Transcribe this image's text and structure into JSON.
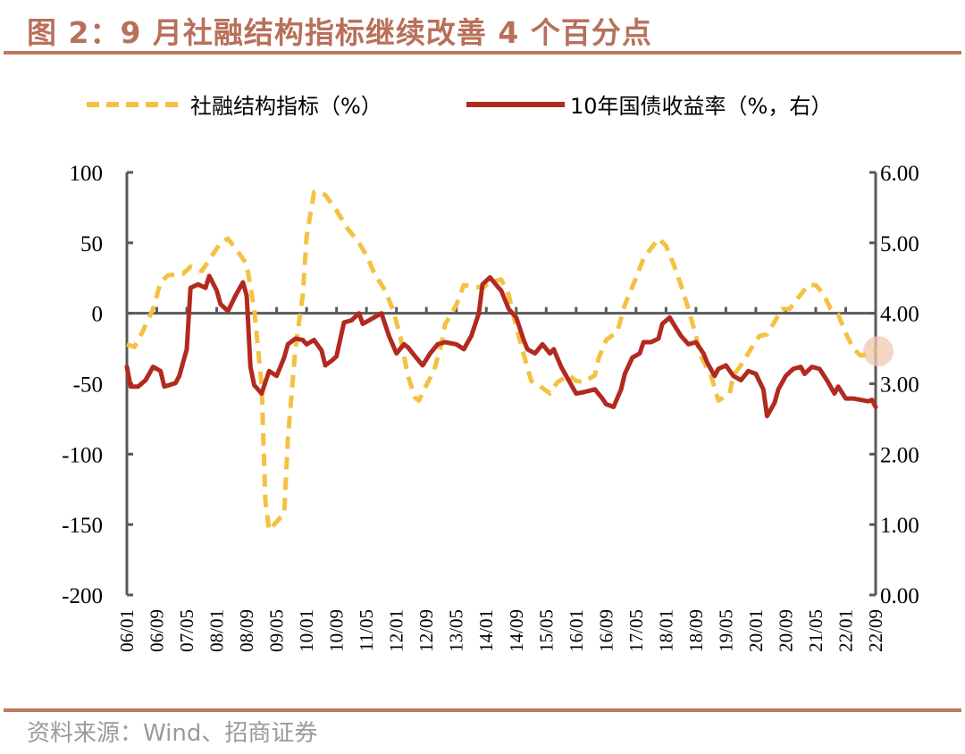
{
  "title": "图 2：9 月社融结构指标继续改善 4 个百分点",
  "source": "资料来源：Wind、招商证券",
  "colors": {
    "title": "#b8705a",
    "rule": "#c0785f",
    "series1": "#f5c142",
    "series2": "#b22a1f",
    "axis": "#595959",
    "highlight": "#efc9b0"
  },
  "chart_data": {
    "type": "line",
    "title": "",
    "x_ticks": [
      "06/01",
      "06/09",
      "07/05",
      "08/01",
      "08/09",
      "09/05",
      "10/01",
      "10/09",
      "11/05",
      "12/01",
      "12/09",
      "13/05",
      "14/01",
      "14/09",
      "15/05",
      "16/01",
      "16/09",
      "17/05",
      "18/01",
      "18/09",
      "19/05",
      "20/01",
      "20/09",
      "21/05",
      "22/01",
      "22/09"
    ],
    "x_range": [
      "06/01",
      "22/09"
    ],
    "y_left": {
      "range": [
        -200,
        100
      ],
      "ticks": [
        "100",
        "50",
        "0",
        "-50",
        "-100",
        "-150",
        "-200"
      ]
    },
    "y_right": {
      "range": [
        0,
        6
      ],
      "ticks": [
        "6.00",
        "5.00",
        "4.00",
        "3.00",
        "2.00",
        "1.00",
        "0.00"
      ]
    },
    "grid": false,
    "legend_placement": "top",
    "highlight_point": "22/09",
    "series": [
      {
        "name": "社融结构指标（%）",
        "axis": "left",
        "style": "dashed",
        "points": [
          [
            "06/01",
            -22
          ],
          [
            "06/03",
            -24
          ],
          [
            "06/05",
            -14
          ],
          [
            "06/08",
            3
          ],
          [
            "06/10",
            22
          ],
          [
            "06/12",
            27
          ],
          [
            "07/04",
            28
          ],
          [
            "07/06",
            33
          ],
          [
            "07/09",
            30
          ],
          [
            "07/11",
            38
          ],
          [
            "08/02",
            50
          ],
          [
            "08/04",
            53
          ],
          [
            "08/06",
            46
          ],
          [
            "08/09",
            35
          ],
          [
            "08/11",
            3
          ],
          [
            "09/01",
            -51
          ],
          [
            "09/02",
            -133
          ],
          [
            "09/03",
            -154
          ],
          [
            "09/06",
            -145
          ],
          [
            "09/07",
            -143
          ],
          [
            "09/08",
            -89
          ],
          [
            "09/10",
            -25
          ],
          [
            "09/12",
            13
          ],
          [
            "10/01",
            54
          ],
          [
            "10/03",
            86
          ],
          [
            "10/06",
            84
          ],
          [
            "10/09",
            73
          ],
          [
            "10/12",
            60
          ],
          [
            "11/03",
            50
          ],
          [
            "11/05",
            41
          ],
          [
            "11/07",
            29
          ],
          [
            "11/10",
            16
          ],
          [
            "11/12",
            3
          ],
          [
            "12/02",
            -16
          ],
          [
            "12/04",
            -44
          ],
          [
            "12/06",
            -60
          ],
          [
            "12/07",
            -62
          ],
          [
            "12/09",
            -51
          ],
          [
            "12/11",
            -41
          ],
          [
            "13/01",
            -22
          ],
          [
            "13/02",
            -8
          ],
          [
            "13/05",
            6
          ],
          [
            "13/07",
            20
          ],
          [
            "13/10",
            19
          ],
          [
            "13/12",
            18
          ],
          [
            "14/02",
            22
          ],
          [
            "14/05",
            24
          ],
          [
            "14/07",
            13
          ],
          [
            "14/09",
            -10
          ],
          [
            "14/11",
            -29
          ],
          [
            "15/01",
            -48
          ],
          [
            "15/03",
            -51
          ],
          [
            "15/06",
            -57
          ],
          [
            "15/08",
            -49
          ],
          [
            "15/11",
            -44
          ],
          [
            "16/01",
            -48
          ],
          [
            "16/03",
            -49
          ],
          [
            "16/06",
            -44
          ],
          [
            "16/07",
            -32
          ],
          [
            "16/09",
            -19
          ],
          [
            "16/12",
            -13
          ],
          [
            "17/02",
            6
          ],
          [
            "17/05",
            25
          ],
          [
            "17/07",
            39
          ],
          [
            "17/09",
            46
          ],
          [
            "17/11",
            53
          ],
          [
            "18/01",
            48
          ],
          [
            "18/03",
            35
          ],
          [
            "18/05",
            20
          ],
          [
            "18/07",
            3
          ],
          [
            "18/09",
            -16
          ],
          [
            "18/10",
            -29
          ],
          [
            "19/01",
            -44
          ],
          [
            "19/03",
            -62
          ],
          [
            "19/06",
            -57
          ],
          [
            "19/07",
            -44
          ],
          [
            "19/09",
            -37
          ],
          [
            "19/12",
            -24
          ],
          [
            "20/02",
            -16
          ],
          [
            "20/04",
            -15
          ],
          [
            "20/06",
            -6
          ],
          [
            "20/08",
            3
          ],
          [
            "20/10",
            3
          ],
          [
            "20/12",
            10
          ],
          [
            "21/03",
            20
          ],
          [
            "21/05",
            20
          ],
          [
            "21/07",
            14
          ],
          [
            "21/09",
            3
          ],
          [
            "21/11",
            -1
          ],
          [
            "22/01",
            -14
          ],
          [
            "22/03",
            -25
          ],
          [
            "22/05",
            -30
          ],
          [
            "22/07",
            -29
          ],
          [
            "22/09",
            -27
          ]
        ]
      },
      {
        "name": "10年国债收益率（%，右）",
        "axis": "right",
        "style": "solid",
        "points": [
          [
            "06/01",
            3.24
          ],
          [
            "06/02",
            2.96
          ],
          [
            "06/04",
            2.96
          ],
          [
            "06/06",
            3.05
          ],
          [
            "06/08",
            3.24
          ],
          [
            "06/10",
            3.18
          ],
          [
            "06/11",
            2.96
          ],
          [
            "07/02",
            3.01
          ],
          [
            "07/03",
            3.11
          ],
          [
            "07/05",
            3.49
          ],
          [
            "07/06",
            4.36
          ],
          [
            "07/08",
            4.41
          ],
          [
            "07/10",
            4.36
          ],
          [
            "07/11",
            4.53
          ],
          [
            "08/01",
            4.32
          ],
          [
            "08/02",
            4.13
          ],
          [
            "08/04",
            4.03
          ],
          [
            "08/06",
            4.25
          ],
          [
            "08/08",
            4.44
          ],
          [
            "08/09",
            4.25
          ],
          [
            "08/10",
            3.24
          ],
          [
            "08/11",
            2.98
          ],
          [
            "09/01",
            2.86
          ],
          [
            "09/03",
            3.18
          ],
          [
            "09/05",
            3.11
          ],
          [
            "09/07",
            3.37
          ],
          [
            "09/08",
            3.56
          ],
          [
            "09/10",
            3.64
          ],
          [
            "09/12",
            3.62
          ],
          [
            "10/01",
            3.56
          ],
          [
            "10/03",
            3.62
          ],
          [
            "10/05",
            3.47
          ],
          [
            "10/06",
            3.26
          ],
          [
            "10/08",
            3.34
          ],
          [
            "10/09",
            3.39
          ],
          [
            "10/11",
            3.87
          ],
          [
            "11/01",
            3.9
          ],
          [
            "11/03",
            4.0
          ],
          [
            "11/04",
            3.85
          ],
          [
            "11/07",
            3.94
          ],
          [
            "11/09",
            4.0
          ],
          [
            "11/11",
            3.68
          ],
          [
            "12/01",
            3.43
          ],
          [
            "12/03",
            3.56
          ],
          [
            "12/04",
            3.52
          ],
          [
            "12/06",
            3.39
          ],
          [
            "12/08",
            3.26
          ],
          [
            "12/10",
            3.43
          ],
          [
            "12/12",
            3.56
          ],
          [
            "13/02",
            3.59
          ],
          [
            "13/05",
            3.56
          ],
          [
            "13/07",
            3.49
          ],
          [
            "13/09",
            3.68
          ],
          [
            "13/11",
            4.0
          ],
          [
            "13/12",
            4.41
          ],
          [
            "14/02",
            4.51
          ],
          [
            "14/04",
            4.38
          ],
          [
            "14/05",
            4.32
          ],
          [
            "14/07",
            4.06
          ],
          [
            "14/09",
            3.94
          ],
          [
            "14/11",
            3.62
          ],
          [
            "14/12",
            3.49
          ],
          [
            "15/02",
            3.43
          ],
          [
            "15/04",
            3.56
          ],
          [
            "15/06",
            3.43
          ],
          [
            "15/07",
            3.49
          ],
          [
            "15/09",
            3.24
          ],
          [
            "15/11",
            3.05
          ],
          [
            "16/01",
            2.86
          ],
          [
            "16/03",
            2.88
          ],
          [
            "16/06",
            2.92
          ],
          [
            "16/08",
            2.79
          ],
          [
            "16/09",
            2.71
          ],
          [
            "16/11",
            2.67
          ],
          [
            "17/01",
            2.92
          ],
          [
            "17/02",
            3.14
          ],
          [
            "17/04",
            3.37
          ],
          [
            "17/06",
            3.43
          ],
          [
            "17/07",
            3.59
          ],
          [
            "17/09",
            3.59
          ],
          [
            "17/11",
            3.64
          ],
          [
            "17/12",
            3.85
          ],
          [
            "18/02",
            3.94
          ],
          [
            "18/03",
            3.85
          ],
          [
            "18/05",
            3.68
          ],
          [
            "18/07",
            3.56
          ],
          [
            "18/09",
            3.59
          ],
          [
            "18/11",
            3.43
          ],
          [
            "18/12",
            3.3
          ],
          [
            "19/02",
            3.11
          ],
          [
            "19/03",
            3.21
          ],
          [
            "19/05",
            3.26
          ],
          [
            "19/07",
            3.11
          ],
          [
            "19/09",
            3.05
          ],
          [
            "19/11",
            3.18
          ],
          [
            "20/01",
            3.14
          ],
          [
            "20/03",
            2.92
          ],
          [
            "20/04",
            2.54
          ],
          [
            "20/06",
            2.73
          ],
          [
            "20/07",
            2.92
          ],
          [
            "20/09",
            3.11
          ],
          [
            "20/11",
            3.21
          ],
          [
            "21/01",
            3.24
          ],
          [
            "21/02",
            3.14
          ],
          [
            "21/04",
            3.24
          ],
          [
            "21/06",
            3.21
          ],
          [
            "21/08",
            3.05
          ],
          [
            "21/10",
            2.86
          ],
          [
            "21/11",
            2.96
          ],
          [
            "22/01",
            2.79
          ],
          [
            "22/03",
            2.79
          ],
          [
            "22/05",
            2.77
          ],
          [
            "22/07",
            2.75
          ],
          [
            "22/08",
            2.77
          ],
          [
            "22/09",
            2.67
          ]
        ]
      }
    ]
  }
}
